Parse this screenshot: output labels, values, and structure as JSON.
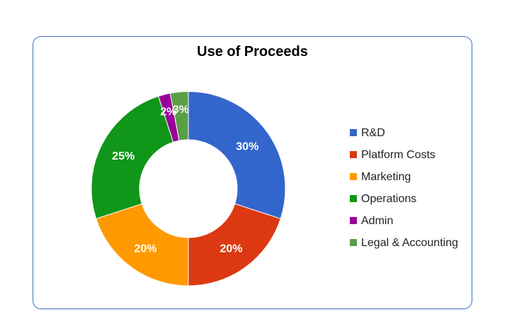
{
  "chart_data": {
    "type": "pie",
    "variant": "donut",
    "title": "Use of Proceeds",
    "categories": [
      "R&D",
      "Platform Costs",
      "Marketing",
      "Operations",
      "Admin",
      "Legal & Accounting"
    ],
    "values": [
      30,
      20,
      20,
      25,
      2,
      3
    ],
    "value_labels": [
      "30%",
      "20%",
      "20%",
      "25%",
      "2%",
      "3%"
    ],
    "colors": [
      "#3366cc",
      "#dc3912",
      "#ff9900",
      "#109618",
      "#990099",
      "#5a9e47"
    ],
    "label_color": "#ffffff",
    "legend_position": "right",
    "start_angle_deg": 0,
    "direction": "clockwise"
  }
}
